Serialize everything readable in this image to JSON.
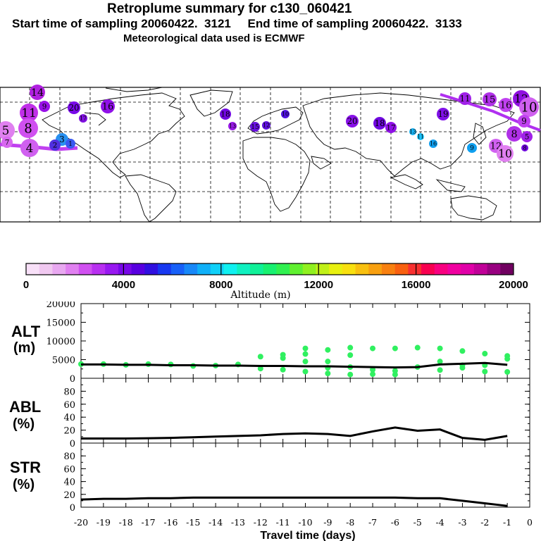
{
  "header": {
    "title": "Retroplume summary for c130_060421",
    "sampling": "Start time of sampling 20060422.  3121     End time of sampling 20060422.  3133",
    "met": "Meteorological data used is ECMWF"
  },
  "colorbar": {
    "label": "Altitude (m)",
    "ticks": [
      "0",
      "4000",
      "8000",
      "12000",
      "16000",
      "20000"
    ],
    "colors": [
      "#f8e0f8",
      "#f0c8f0",
      "#e8a8f0",
      "#e080f0",
      "#d050f0",
      "#b830f0",
      "#9818f0",
      "#7808e8",
      "#5800e0",
      "#3010e0",
      "#1838f0",
      "#1860f8",
      "#1888f8",
      "#10b0f8",
      "#10d0f8",
      "#10f0f0",
      "#10f0c0",
      "#10f098",
      "#18f070",
      "#30f050",
      "#60f030",
      "#90f020",
      "#c0f018",
      "#e8f010",
      "#f8e010",
      "#f8c010",
      "#f8a010",
      "#f88010",
      "#f86010",
      "#f83030",
      "#f80050",
      "#f80080",
      "#f000a0",
      "#e000a8",
      "#c00098",
      "#980080",
      "#700060"
    ]
  },
  "map_markers": [
    {
      "label": "14",
      "color": "#b020e0"
    },
    {
      "label": "9",
      "color": "#9810e8"
    },
    {
      "label": "11",
      "color": "#c030e8"
    },
    {
      "label": "8",
      "color": "#d050f0"
    },
    {
      "label": "5",
      "color": "#e080f0"
    },
    {
      "label": "7",
      "color": "#d868f0"
    },
    {
      "label": "4",
      "color": "#d060f0"
    },
    {
      "label": "20",
      "color": "#7808e8"
    },
    {
      "label": "16",
      "color": "#9010e8"
    },
    {
      "label": "17",
      "color": "#8010e0"
    },
    {
      "label": "3",
      "color": "#2890f0"
    },
    {
      "label": "2",
      "color": "#5030e0"
    },
    {
      "label": "1",
      "color": "#3858f0"
    },
    {
      "label": "18",
      "color": "#7008e0"
    },
    {
      "label": "13",
      "color": "#9818e8"
    },
    {
      "label": "10",
      "color": "#5010e0"
    },
    {
      "label": "15",
      "color": "#6810e0"
    },
    {
      "label": "12",
      "color": "#6010e0"
    },
    {
      "label": "20",
      "color": "#8810e8"
    },
    {
      "label": "18",
      "color": "#7008e0"
    },
    {
      "label": "17",
      "color": "#9010e8"
    },
    {
      "label": "13",
      "color": "#18b0f0"
    },
    {
      "label": "11",
      "color": "#18c0f8"
    },
    {
      "label": "16",
      "color": "#10a0f0"
    },
    {
      "label": "19",
      "color": "#8010e8"
    },
    {
      "label": "11",
      "color": "#a020e8"
    },
    {
      "label": "15",
      "color": "#b030e8"
    },
    {
      "label": "16",
      "color": "#c040f0"
    },
    {
      "label": "12",
      "color": "#9010e0"
    },
    {
      "label": "10",
      "color": "#d060f0"
    },
    {
      "label": "9",
      "color": "#c040f0"
    },
    {
      "label": "8",
      "color": "#b030e8"
    },
    {
      "label": "5",
      "color": "#a020e8"
    },
    {
      "label": "12",
      "color": "#d060f0"
    },
    {
      "label": "10",
      "color": "#e080f0"
    },
    {
      "label": "9",
      "color": "#10a0f0"
    },
    {
      "label": "8",
      "color": "#7008e0"
    }
  ],
  "chart_data": [
    {
      "type": "scatter",
      "panel": "ALT",
      "ylabel": "ALT (m)",
      "ylim": [
        0,
        20000
      ],
      "yticks": [
        "0",
        "5000",
        "10000",
        "15000",
        "20000"
      ],
      "mean_line": {
        "x": [
          -20,
          -19,
          -18,
          -17,
          -16,
          -15,
          -14,
          -13,
          -12,
          -11,
          -10,
          -9,
          -8,
          -7,
          -6,
          -5,
          -4,
          -3,
          -2,
          -1
        ],
        "y": [
          3700,
          3700,
          3600,
          3600,
          3500,
          3500,
          3400,
          3400,
          3300,
          3300,
          3200,
          3200,
          3100,
          3000,
          2900,
          3000,
          3700,
          3900,
          4100,
          3600
        ]
      },
      "points": {
        "x": [
          -20,
          -19,
          -18,
          -17,
          -16,
          -15,
          -14,
          -13,
          -12,
          -12,
          -11,
          -11,
          -11,
          -10,
          -10,
          -10,
          -10,
          -9,
          -9,
          -9,
          -9,
          -8,
          -8,
          -8,
          -8,
          -7,
          -7,
          -7,
          -6,
          -6,
          -6,
          -5,
          -5,
          -4,
          -4,
          -4,
          -3,
          -3,
          -3,
          -2,
          -2,
          -2,
          -1,
          -1,
          -1
        ],
        "y": [
          3800,
          3800,
          3600,
          3800,
          3700,
          3300,
          3400,
          3700,
          5800,
          2600,
          6300,
          5400,
          2300,
          8000,
          6500,
          4500,
          1800,
          7600,
          4500,
          1300,
          2800,
          8200,
          6200,
          1000,
          3000,
          8000,
          2300,
          1100,
          8000,
          2000,
          1000,
          8200,
          3000,
          8000,
          4500,
          2200,
          7300,
          3500,
          2800,
          6600,
          3500,
          1800,
          6000,
          5200,
          1700
        ]
      },
      "point_color": "#30f060"
    },
    {
      "type": "line",
      "panel": "ABL",
      "ylabel": "ABL (%)",
      "ylim": [
        0,
        100
      ],
      "yticks": [
        "0",
        "20",
        "40",
        "60",
        "80"
      ],
      "x": [
        -20,
        -19,
        -18,
        -17,
        -16,
        -15,
        -14,
        -13,
        -12,
        -11,
        -10,
        -9,
        -8,
        -7,
        -6,
        -5,
        -4,
        -3,
        -2,
        -1
      ],
      "y": [
        7,
        7,
        7,
        7.5,
        8,
        9,
        10,
        11,
        12,
        14,
        15,
        14,
        11,
        18,
        24,
        19,
        21,
        8,
        5,
        11
      ]
    },
    {
      "type": "line",
      "panel": "STR",
      "ylabel": "STR (%)",
      "ylim": [
        0,
        100
      ],
      "yticks": [
        "0",
        "20",
        "40",
        "60",
        "80"
      ],
      "x": [
        -20,
        -19,
        -18,
        -17,
        -16,
        -15,
        -14,
        -13,
        -12,
        -11,
        -10,
        -9,
        -8,
        -7,
        -6,
        -5,
        -4,
        -3,
        -2,
        -1
      ],
      "y": [
        12,
        13,
        13,
        14,
        14,
        15,
        15,
        15,
        15,
        15,
        15,
        15,
        15,
        15,
        15,
        14,
        14,
        10,
        6,
        2
      ]
    }
  ],
  "xaxis": {
    "label": "Travel time (days)",
    "ticks": [
      "-20",
      "-19",
      "-18",
      "-17",
      "-16",
      "-15",
      "-14",
      "-13",
      "-12",
      "-11",
      "-10",
      "-9",
      "-8",
      "-7",
      "-6",
      "-5",
      "-4",
      "-3",
      "-2",
      "-1",
      "0"
    ]
  }
}
